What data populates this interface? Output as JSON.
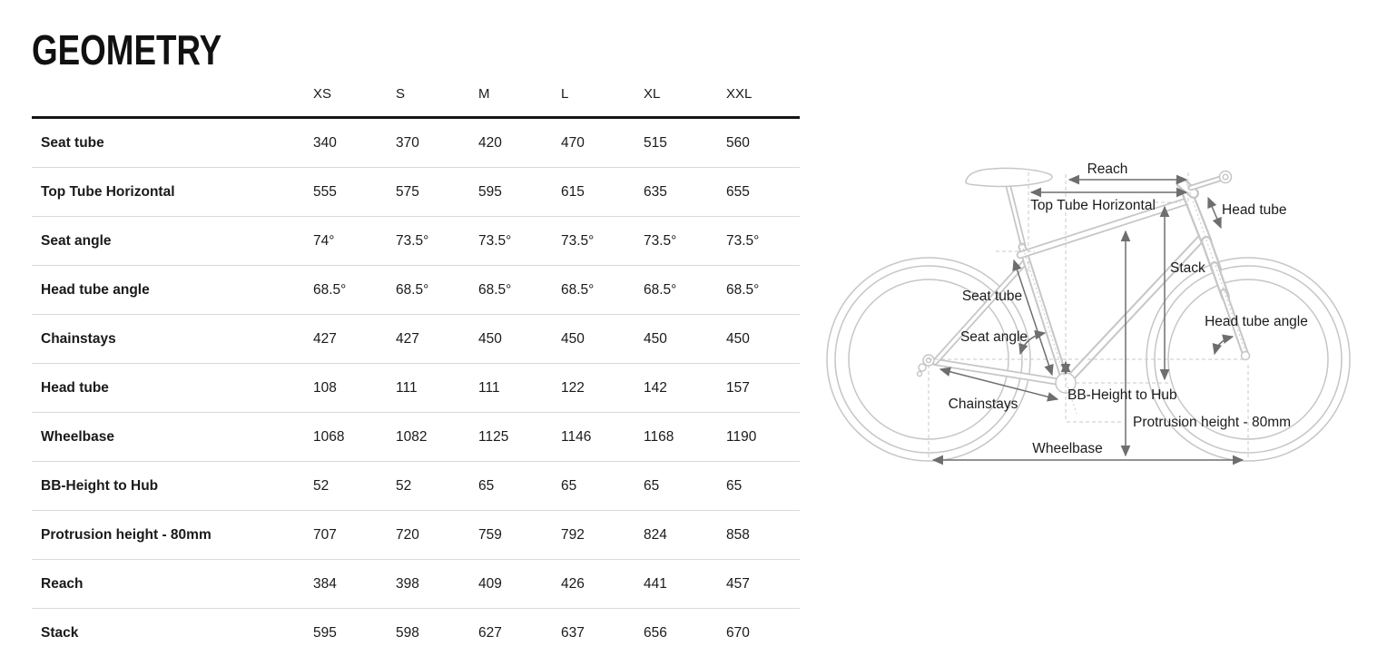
{
  "title": "GEOMETRY",
  "table": {
    "columns": [
      "XS",
      "S",
      "M",
      "L",
      "XL",
      "XXL"
    ],
    "rows": [
      {
        "label": "Seat tube",
        "values": [
          "340",
          "370",
          "420",
          "470",
          "515",
          "560"
        ]
      },
      {
        "label": "Top Tube Horizontal",
        "values": [
          "555",
          "575",
          "595",
          "615",
          "635",
          "655"
        ]
      },
      {
        "label": "Seat angle",
        "values": [
          "74°",
          "73.5°",
          "73.5°",
          "73.5°",
          "73.5°",
          "73.5°"
        ]
      },
      {
        "label": "Head tube angle",
        "values": [
          "68.5°",
          "68.5°",
          "68.5°",
          "68.5°",
          "68.5°",
          "68.5°"
        ]
      },
      {
        "label": "Chainstays",
        "values": [
          "427",
          "427",
          "450",
          "450",
          "450",
          "450"
        ]
      },
      {
        "label": "Head tube",
        "values": [
          "108",
          "111",
          "111",
          "122",
          "142",
          "157"
        ]
      },
      {
        "label": "Wheelbase",
        "values": [
          "1068",
          "1082",
          "1125",
          "1146",
          "1168",
          "1190"
        ]
      },
      {
        "label": "BB-Height to Hub",
        "values": [
          "52",
          "52",
          "65",
          "65",
          "65",
          "65"
        ]
      },
      {
        "label": "Protrusion height - 80mm",
        "values": [
          "707",
          "720",
          "759",
          "792",
          "824",
          "858"
        ]
      },
      {
        "label": "Reach",
        "values": [
          "384",
          "398",
          "409",
          "426",
          "441",
          "457"
        ]
      },
      {
        "label": "Stack",
        "values": [
          "595",
          "598",
          "627",
          "637",
          "656",
          "670"
        ]
      }
    ]
  },
  "diagram": {
    "labels": {
      "reach": "Reach",
      "top_tube_horizontal": "Top Tube Horizontal",
      "head_tube": "Head tube",
      "stack": "Stack",
      "seat_tube": "Seat tube",
      "seat_angle": "Seat angle",
      "head_tube_angle": "Head tube angle",
      "chainstays": "Chainstays",
      "bb_height_to_hub": "BB-Height to Hub",
      "protrusion_height": "Protrusion height - 80mm",
      "wheelbase": "Wheelbase"
    }
  },
  "colors": {
    "text": "#1a1a1a",
    "header_rule": "#151515",
    "row_divider": "#d9d9d9",
    "bike_outline": "#c6c6c6",
    "annotation": "#6e6e6e",
    "guide_dash": "#c9c9c9"
  }
}
